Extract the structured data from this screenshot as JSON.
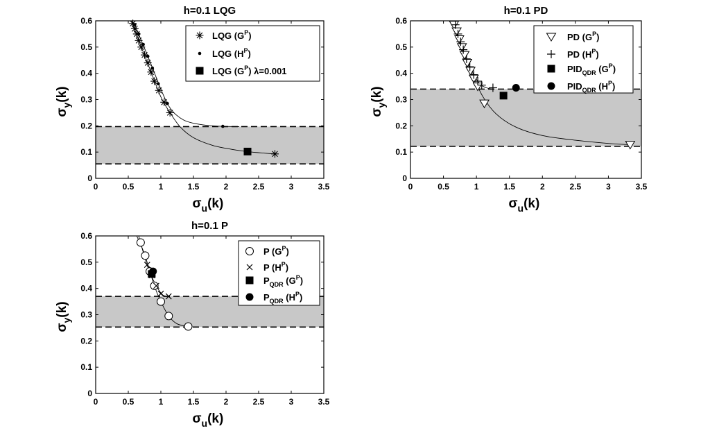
{
  "chart_data": [
    {
      "id": "lqg",
      "type": "line",
      "title": "h=0.1 LQG",
      "xlabel": "σ",
      "xlabel_sub": "u",
      "xlabel_tail": "(k)",
      "ylabel": "σ",
      "ylabel_sub": "y",
      "ylabel_tail": "(k)",
      "xlim": [
        0,
        3.5
      ],
      "ylim": [
        0,
        0.6
      ],
      "xticks": [
        0,
        0.5,
        1,
        1.5,
        2,
        2.5,
        3,
        3.5
      ],
      "xtick_labels": [
        "0",
        "0.5",
        "1",
        "1.5",
        "2",
        "2.5",
        "3",
        "3.5"
      ],
      "yticks": [
        0,
        0.1,
        0.2,
        0.3,
        0.4,
        0.5,
        0.6
      ],
      "ytick_labels": [
        "0",
        "0.1",
        "0.2",
        "0.3",
        "0.4",
        "0.5",
        "0.6"
      ],
      "band": [
        0.055,
        0.197
      ],
      "legend_position": "top-right",
      "series": [
        {
          "key": "g",
          "name": "LQG (G",
          "sup": "P",
          "close": ")",
          "marker": "star",
          "x": [
            0.57,
            0.6,
            0.63,
            0.66,
            0.7,
            0.75,
            0.8,
            0.85,
            0.9,
            0.97,
            1.05,
            1.14,
            2.75
          ],
          "y": [
            0.59,
            0.57,
            0.55,
            0.525,
            0.5,
            0.47,
            0.44,
            0.405,
            0.37,
            0.335,
            0.29,
            0.25,
            0.093
          ],
          "curve": {
            "x": [
              0.55,
              0.7,
              0.85,
              1.0,
              1.14,
              1.3,
              1.5,
              1.8,
              2.1,
              2.4,
              2.75
            ],
            "y": [
              0.6,
              0.5,
              0.405,
              0.31,
              0.25,
              0.195,
              0.155,
              0.125,
              0.11,
              0.1,
              0.093
            ]
          }
        },
        {
          "key": "h",
          "name": "LQG (H",
          "sup": "P",
          "close": ")",
          "marker": "dot",
          "x": [
            0.6,
            0.66,
            0.73,
            0.8,
            0.87,
            0.96,
            1.1,
            1.95
          ],
          "y": [
            0.585,
            0.55,
            0.51,
            0.465,
            0.42,
            0.36,
            0.285,
            0.198
          ],
          "curve": {
            "x": [
              0.6,
              0.8,
              1.0,
              1.1,
              1.2,
              1.35,
              1.5,
              1.7,
              1.95,
              2.2
            ],
            "y": [
              0.585,
              0.465,
              0.34,
              0.285,
              0.25,
              0.222,
              0.21,
              0.202,
              0.198,
              0.197
            ]
          }
        },
        {
          "key": "q",
          "name": "LQG (G",
          "sup": "P",
          "close": ") λ=0.001",
          "marker": "square",
          "x": [
            2.33
          ],
          "y": [
            0.102
          ]
        }
      ]
    },
    {
      "id": "pd",
      "type": "line",
      "title": "h=0.1 PD",
      "xlabel": "σ",
      "xlabel_sub": "u",
      "xlabel_tail": "(k)",
      "ylabel": "σ",
      "ylabel_sub": "y",
      "ylabel_tail": "(k)",
      "xlim": [
        0,
        3.5
      ],
      "ylim": [
        0,
        0.6
      ],
      "xticks": [
        0,
        0.5,
        1,
        1.5,
        2,
        2.5,
        3,
        3.5
      ],
      "xtick_labels": [
        "0",
        "0.5",
        "1",
        "1.5",
        "2",
        "2.5",
        "3",
        "3.5"
      ],
      "yticks": [
        0,
        0.1,
        0.2,
        0.3,
        0.4,
        0.5,
        0.6
      ],
      "ytick_labels": [
        "0",
        "0.1",
        "0.2",
        "0.3",
        "0.4",
        "0.5",
        "0.6"
      ],
      "band": [
        0.122,
        0.34
      ],
      "legend_position": "top-right",
      "series": [
        {
          "key": "g",
          "name": "PD (G",
          "sup": "P",
          "close": ")",
          "marker": "triangle-down",
          "x": [
            0.66,
            0.7,
            0.74,
            0.78,
            0.82,
            0.86,
            0.91,
            0.96,
            1.02,
            1.12,
            3.33
          ],
          "y": [
            0.585,
            0.56,
            0.53,
            0.5,
            0.47,
            0.44,
            0.41,
            0.38,
            0.35,
            0.285,
            0.128
          ],
          "curve": {
            "x": [
              0.64,
              0.8,
              0.95,
              1.1,
              1.3,
              1.6,
              2.0,
              2.5,
              3.0,
              3.33
            ],
            "y": [
              0.6,
              0.48,
              0.39,
              0.31,
              0.245,
              0.195,
              0.163,
              0.145,
              0.133,
              0.128
            ]
          }
        },
        {
          "key": "h",
          "name": "PD (H",
          "sup": "P",
          "close": ")",
          "marker": "plus",
          "x": [
            0.68,
            0.72,
            0.76,
            0.8,
            0.85,
            0.9,
            0.96,
            1.02,
            1.08,
            1.25
          ],
          "y": [
            0.585,
            0.55,
            0.52,
            0.49,
            0.455,
            0.425,
            0.395,
            0.37,
            0.355,
            0.345
          ],
          "curve": {
            "x": [
              0.65,
              0.8,
              0.95,
              1.05,
              1.15,
              1.25
            ],
            "y": [
              0.6,
              0.49,
              0.4,
              0.36,
              0.345,
              0.34
            ]
          }
        },
        {
          "key": "q",
          "name": "PID",
          "sub": "QDR",
          "sup": "P",
          "close": ")",
          "mid": " (G",
          "marker": "square",
          "x": [
            1.41
          ],
          "y": [
            0.315
          ]
        },
        {
          "key": "r",
          "name": "PID",
          "sub": "QDR",
          "sup": "P",
          "close": ")",
          "mid": " (H",
          "marker": "circle-filled",
          "x": [
            1.6
          ],
          "y": [
            0.345
          ]
        }
      ]
    },
    {
      "id": "p",
      "type": "line",
      "title": "h=0.1 P",
      "xlabel": "σ",
      "xlabel_sub": "u",
      "xlabel_tail": "(k)",
      "ylabel": "σ",
      "ylabel_sub": "y",
      "ylabel_tail": "(k)",
      "xlim": [
        0,
        3.5
      ],
      "ylim": [
        0,
        0.6
      ],
      "xticks": [
        0,
        0.5,
        1,
        1.5,
        2,
        2.5,
        3,
        3.5
      ],
      "xtick_labels": [
        "0",
        "0.5",
        "1",
        "1.5",
        "2",
        "2.5",
        "3",
        "3.5"
      ],
      "yticks": [
        0,
        0.1,
        0.2,
        0.3,
        0.4,
        0.5,
        0.6
      ],
      "ytick_labels": [
        "0",
        "0.1",
        "0.2",
        "0.3",
        "0.4",
        "0.5",
        "0.6"
      ],
      "band": [
        0.253,
        0.37
      ],
      "legend_position": "top-right",
      "series": [
        {
          "key": "g",
          "name": "P (G",
          "sup": "P",
          "close": ")",
          "marker": "circle-open",
          "x": [
            0.69,
            0.76,
            0.83,
            0.9,
            1.0,
            1.12,
            1.42
          ],
          "y": [
            0.575,
            0.525,
            0.465,
            0.41,
            0.35,
            0.295,
            0.255
          ],
          "curve": {
            "x": [
              0.63,
              0.75,
              0.9,
              1.0,
              1.12,
              1.25,
              1.42
            ],
            "y": [
              0.6,
              0.53,
              0.41,
              0.35,
              0.295,
              0.265,
              0.255
            ]
          }
        },
        {
          "key": "h",
          "name": "P (H",
          "sup": "P",
          "close": ")",
          "marker": "cross",
          "x": [
            0.79,
            0.86,
            0.93,
            1.0,
            1.12
          ],
          "y": [
            0.49,
            0.45,
            0.41,
            0.38,
            0.37
          ],
          "curve": {
            "x": [
              0.66,
              0.8,
              0.93,
              1.03,
              1.12
            ],
            "y": [
              0.6,
              0.48,
              0.41,
              0.375,
              0.37
            ]
          }
        },
        {
          "key": "q",
          "name": "P",
          "sub": "QDR",
          "sup": "P",
          "close": ")",
          "mid": " (G",
          "marker": "square",
          "x": [
            0.86
          ],
          "y": [
            0.455
          ]
        },
        {
          "key": "r",
          "name": "P",
          "sub": "QDR",
          "sup": "P",
          "close": ")",
          "mid": " (H",
          "marker": "circle-filled",
          "x": [
            0.88
          ],
          "y": [
            0.465
          ]
        }
      ]
    }
  ],
  "colors": {
    "band": "#c8c8c8",
    "ink": "#000000",
    "background": "#ffffff"
  }
}
